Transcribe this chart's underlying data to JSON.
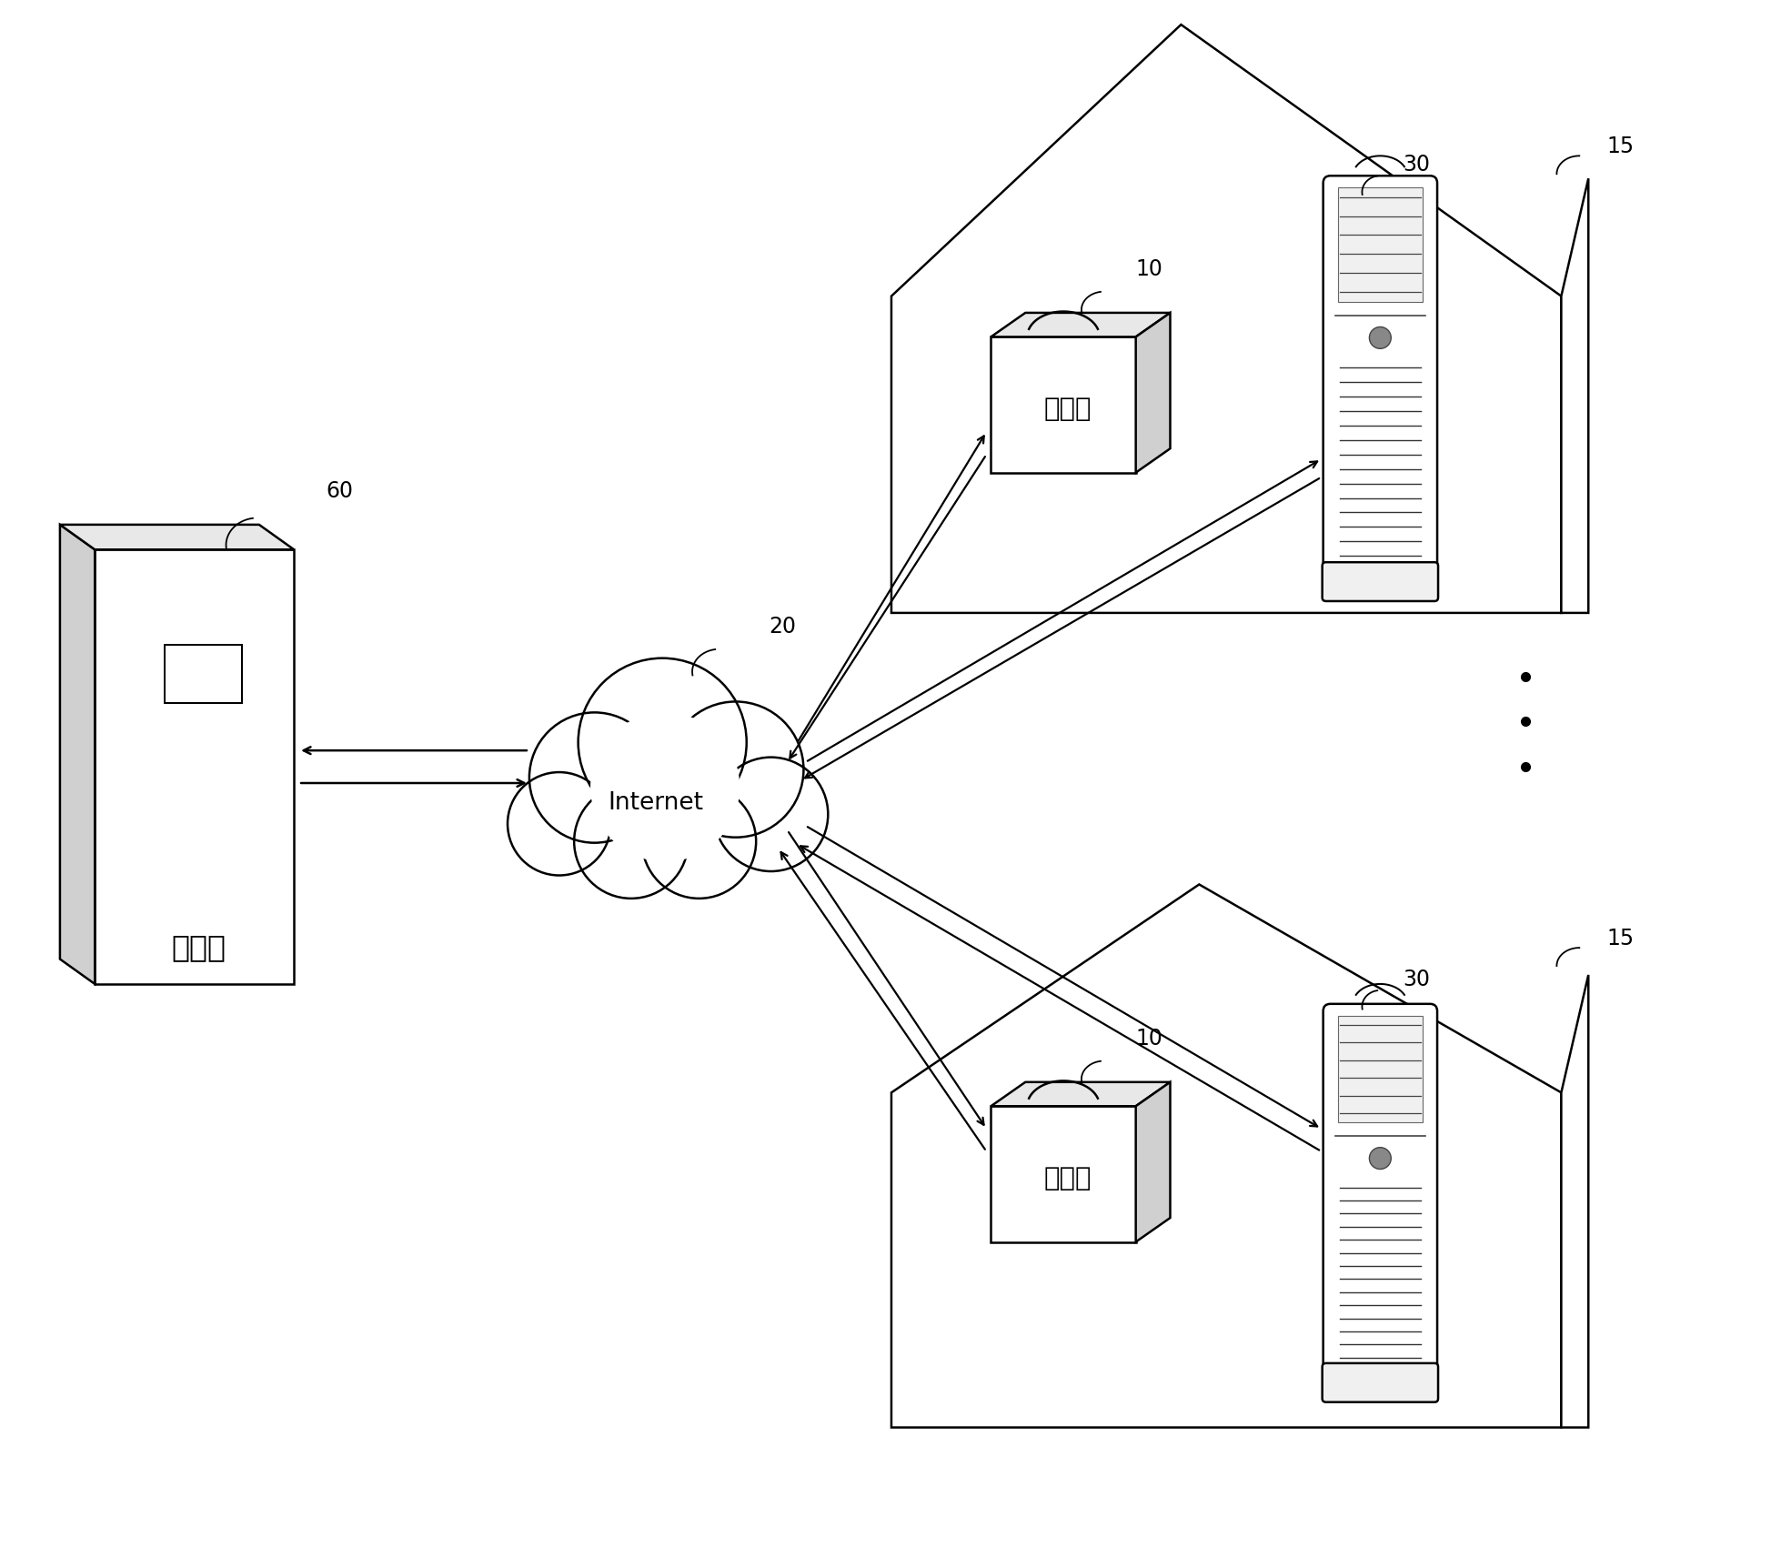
{
  "bg_color": "#ffffff",
  "line_color": "#000000",
  "figsize": [
    19.47,
    17.23
  ],
  "dpi": 100,
  "labels": {
    "server_text": "服务器",
    "internet_text": "Internet",
    "meter_text": "电力表",
    "server_num": "60",
    "internet_num": "20",
    "meter_num_top": "10",
    "meter_num_bot": "10",
    "ac_num_top": "30",
    "ac_num_bot": "30",
    "house_num_top": "15",
    "house_num_bot": "15"
  }
}
